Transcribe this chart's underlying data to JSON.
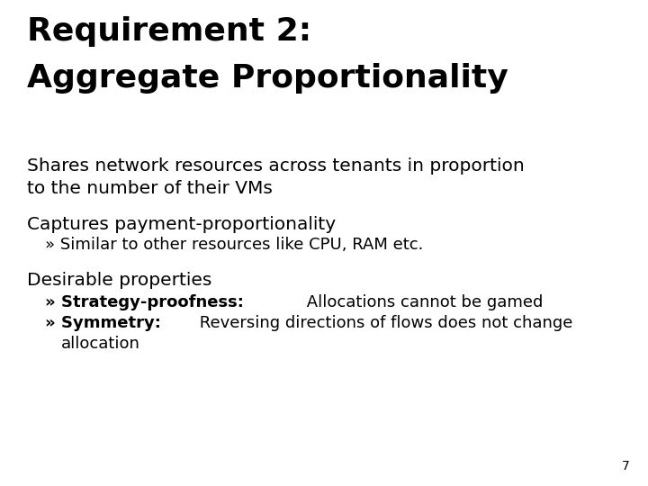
{
  "background_color": "#ffffff",
  "title_line1": "Requirement 2:",
  "title_line2": "Aggregate Proportionality",
  "title_fontsize": 26,
  "title_fontweight": "bold",
  "title_color": "#000000",
  "body_color": "#000000",
  "body_fontsize": 14.5,
  "bullet_fontsize": 13,
  "page_number": "7",
  "page_number_fontsize": 10
}
